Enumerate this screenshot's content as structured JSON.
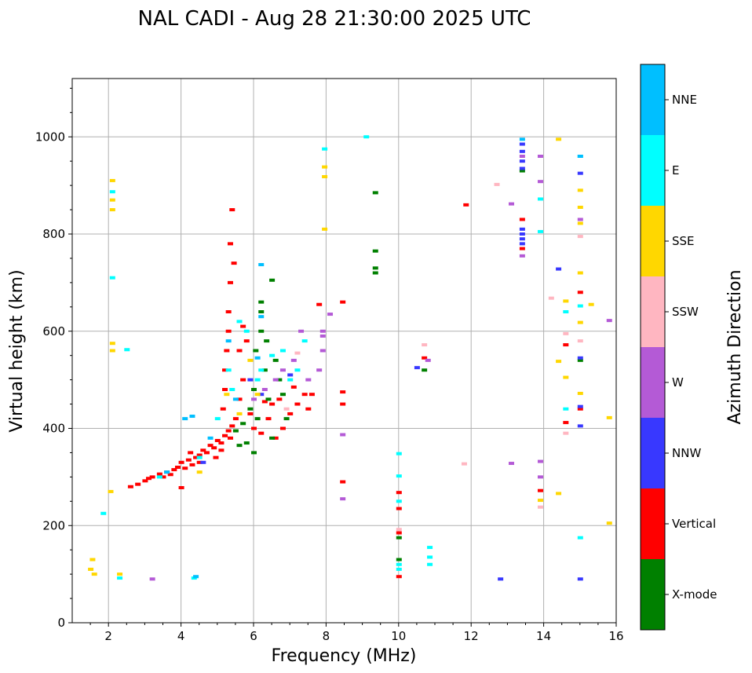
{
  "chart_data": {
    "type": "scatter",
    "title": "NAL CADI - Aug 28 21:30:00 2025 UTC",
    "xlabel": "Frequency (MHz)",
    "ylabel": "Virtual height (km)",
    "xlim": [
      1,
      16
    ],
    "ylim": [
      0,
      1120
    ],
    "x_ticks": [
      2,
      4,
      6,
      8,
      10,
      12,
      14,
      16
    ],
    "x_tick_labels": [
      "2",
      "4",
      "6",
      "8",
      "10",
      "12",
      "14",
      "16"
    ],
    "y_ticks": [
      0,
      200,
      400,
      600,
      800,
      1000
    ],
    "y_tick_labels": [
      "0",
      "200",
      "400",
      "600",
      "800",
      "1000"
    ],
    "grid": true,
    "colorbar": {
      "label": "Azimuth Direction",
      "categories": [
        "X-mode",
        "Vertical",
        "NNW",
        "W",
        "SSW",
        "SSE",
        "E",
        "NNE"
      ],
      "colors": {
        "X-mode": "#008000",
        "Vertical": "#ff0000",
        "NNW": "#3838ff",
        "W": "#b45ad6",
        "SSW": "#ffb6c1",
        "SSE": "#ffd700",
        "E": "#00ffff",
        "NNE": "#00bfff"
      }
    },
    "series": [
      {
        "name": "Vertical",
        "points": [
          [
            2.6,
            280
          ],
          [
            2.8,
            285
          ],
          [
            3.0,
            292
          ],
          [
            3.2,
            300
          ],
          [
            3.4,
            306
          ],
          [
            3.5,
            300
          ],
          [
            3.6,
            310
          ],
          [
            3.7,
            305
          ],
          [
            3.8,
            315
          ],
          [
            3.9,
            320
          ],
          [
            4.0,
            330
          ],
          [
            4.1,
            318
          ],
          [
            4.2,
            335
          ],
          [
            4.3,
            325
          ],
          [
            4.4,
            340
          ],
          [
            4.5,
            345
          ],
          [
            4.5,
            330
          ],
          [
            4.6,
            355
          ],
          [
            4.7,
            350
          ],
          [
            4.8,
            365
          ],
          [
            4.9,
            360
          ],
          [
            5.0,
            375
          ],
          [
            5.1,
            370
          ],
          [
            5.2,
            385
          ],
          [
            5.3,
            395
          ],
          [
            5.4,
            405
          ],
          [
            5.5,
            420
          ],
          [
            4.95,
            340
          ],
          [
            5.1,
            355
          ],
          [
            5.35,
            380
          ],
          [
            5.15,
            440
          ],
          [
            5.2,
            480
          ],
          [
            5.2,
            520
          ],
          [
            5.25,
            560
          ],
          [
            5.3,
            600
          ],
          [
            5.3,
            640
          ],
          [
            5.35,
            700
          ],
          [
            5.35,
            780
          ],
          [
            5.4,
            850
          ],
          [
            5.45,
            740
          ],
          [
            5.6,
            460
          ],
          [
            5.7,
            500
          ],
          [
            5.9,
            430
          ],
          [
            6.0,
            400
          ],
          [
            6.2,
            390
          ],
          [
            6.4,
            420
          ],
          [
            6.5,
            450
          ],
          [
            6.6,
            380
          ],
          [
            6.8,
            400
          ],
          [
            7.0,
            430
          ],
          [
            7.2,
            450
          ],
          [
            7.4,
            470
          ],
          [
            7.6,
            470
          ],
          [
            7.8,
            655
          ],
          [
            5.8,
            580
          ],
          [
            5.7,
            610
          ],
          [
            5.6,
            560
          ],
          [
            4.25,
            350
          ],
          [
            4.0,
            278
          ],
          [
            3.1,
            297
          ],
          [
            6.3,
            455
          ],
          [
            6.7,
            460
          ],
          [
            7.1,
            485
          ],
          [
            7.5,
            440
          ],
          [
            8.45,
            475
          ],
          [
            8.45,
            450
          ],
          [
            8.45,
            290
          ],
          [
            8.45,
            660
          ],
          [
            10.0,
            268
          ],
          [
            10.0,
            235
          ],
          [
            10.0,
            95
          ],
          [
            10.0,
            185
          ],
          [
            10.7,
            545
          ],
          [
            11.85,
            860
          ],
          [
            13.4,
            830
          ],
          [
            13.4,
            770
          ],
          [
            13.9,
            272
          ],
          [
            14.6,
            572
          ],
          [
            15.0,
            440
          ],
          [
            15.0,
            680
          ],
          [
            14.6,
            412
          ]
        ]
      },
      {
        "name": "X-mode",
        "points": [
          [
            5.5,
            395
          ],
          [
            5.7,
            410
          ],
          [
            5.9,
            440
          ],
          [
            6.0,
            480
          ],
          [
            6.05,
            560
          ],
          [
            6.1,
            420
          ],
          [
            6.2,
            600
          ],
          [
            6.2,
            640
          ],
          [
            6.2,
            660
          ],
          [
            6.3,
            520
          ],
          [
            6.35,
            580
          ],
          [
            6.4,
            460
          ],
          [
            6.5,
            380
          ],
          [
            6.5,
            705
          ],
          [
            6.6,
            540
          ],
          [
            6.7,
            500
          ],
          [
            6.8,
            470
          ],
          [
            5.8,
            370
          ],
          [
            5.6,
            365
          ],
          [
            6.0,
            350
          ],
          [
            9.35,
            720
          ],
          [
            9.35,
            730
          ],
          [
            9.35,
            765
          ],
          [
            9.35,
            885
          ],
          [
            10.0,
            130
          ],
          [
            10.0,
            175
          ],
          [
            10.7,
            520
          ],
          [
            13.4,
            930
          ],
          [
            15.0,
            540
          ],
          [
            6.9,
            420
          ]
        ]
      },
      {
        "name": "NNW",
        "points": [
          [
            13.4,
            985
          ],
          [
            13.4,
            970
          ],
          [
            13.4,
            950
          ],
          [
            13.4,
            935
          ],
          [
            13.4,
            800
          ],
          [
            13.4,
            790
          ],
          [
            13.4,
            780
          ],
          [
            13.4,
            810
          ],
          [
            14.4,
            728
          ],
          [
            15.0,
            545
          ],
          [
            15.0,
            445
          ],
          [
            15.0,
            405
          ],
          [
            15.0,
            925
          ],
          [
            15.0,
            90
          ],
          [
            12.8,
            90
          ],
          [
            7.0,
            510
          ],
          [
            6.2,
            470
          ],
          [
            5.9,
            500
          ],
          [
            4.6,
            330
          ],
          [
            10.5,
            525
          ]
        ]
      },
      {
        "name": "W",
        "points": [
          [
            7.9,
            600
          ],
          [
            7.9,
            590
          ],
          [
            7.9,
            560
          ],
          [
            7.8,
            520
          ],
          [
            7.5,
            500
          ],
          [
            7.3,
            600
          ],
          [
            7.1,
            540
          ],
          [
            6.8,
            520
          ],
          [
            6.6,
            500
          ],
          [
            6.3,
            480
          ],
          [
            6.0,
            460
          ],
          [
            8.1,
            635
          ],
          [
            8.45,
            387
          ],
          [
            8.45,
            255
          ],
          [
            3.2,
            90
          ],
          [
            13.1,
            862
          ],
          [
            13.1,
            328
          ],
          [
            13.4,
            755
          ],
          [
            13.4,
            960
          ],
          [
            13.9,
            960
          ],
          [
            13.9,
            908
          ],
          [
            13.9,
            332
          ],
          [
            13.9,
            300
          ],
          [
            15.0,
            830
          ],
          [
            15.8,
            622
          ],
          [
            10.8,
            540
          ]
        ]
      },
      {
        "name": "SSW",
        "points": [
          [
            12.7,
            902
          ],
          [
            14.2,
            668
          ],
          [
            14.6,
            595
          ],
          [
            14.6,
            390
          ],
          [
            15.0,
            580
          ],
          [
            15.0,
            795
          ],
          [
            11.8,
            327
          ],
          [
            10.0,
            192
          ],
          [
            10.7,
            572
          ],
          [
            13.9,
            238
          ],
          [
            7.2,
            555
          ],
          [
            6.9,
            440
          ]
        ]
      },
      {
        "name": "SSE",
        "points": [
          [
            2.1,
            910
          ],
          [
            2.1,
            870
          ],
          [
            2.1,
            850
          ],
          [
            2.1,
            575
          ],
          [
            2.1,
            560
          ],
          [
            2.3,
            100
          ],
          [
            2.05,
            270
          ],
          [
            1.55,
            130
          ],
          [
            1.5,
            110
          ],
          [
            1.6,
            100
          ],
          [
            7.95,
            938
          ],
          [
            7.95,
            918
          ],
          [
            7.95,
            810
          ],
          [
            14.4,
            995
          ],
          [
            14.6,
            662
          ],
          [
            14.6,
            505
          ],
          [
            14.4,
            538
          ],
          [
            14.4,
            266
          ],
          [
            13.9,
            252
          ],
          [
            15.0,
            890
          ],
          [
            15.0,
            855
          ],
          [
            15.0,
            822
          ],
          [
            15.0,
            720
          ],
          [
            15.0,
            618
          ],
          [
            15.0,
            472
          ],
          [
            15.3,
            655
          ],
          [
            15.8,
            422
          ],
          [
            15.8,
            205
          ],
          [
            5.25,
            470
          ],
          [
            5.6,
            430
          ],
          [
            6.1,
            470
          ],
          [
            5.9,
            540
          ],
          [
            4.5,
            310
          ]
        ]
      },
      {
        "name": "E",
        "points": [
          [
            2.1,
            887
          ],
          [
            2.1,
            710
          ],
          [
            2.5,
            562
          ],
          [
            1.85,
            225
          ],
          [
            2.3,
            92
          ],
          [
            3.4,
            300
          ],
          [
            4.35,
            92
          ],
          [
            4.5,
            340
          ],
          [
            5.0,
            420
          ],
          [
            5.3,
            520
          ],
          [
            5.4,
            480
          ],
          [
            5.6,
            620
          ],
          [
            5.8,
            600
          ],
          [
            6.1,
            500
          ],
          [
            6.2,
            520
          ],
          [
            6.5,
            550
          ],
          [
            6.8,
            560
          ],
          [
            7.0,
            500
          ],
          [
            7.2,
            520
          ],
          [
            7.4,
            580
          ],
          [
            10.0,
            348
          ],
          [
            10.0,
            302
          ],
          [
            10.0,
            250
          ],
          [
            10.0,
            120
          ],
          [
            10.0,
            110
          ],
          [
            10.85,
            155
          ],
          [
            10.85,
            135
          ],
          [
            10.85,
            120
          ],
          [
            13.9,
            872
          ],
          [
            13.9,
            805
          ],
          [
            14.6,
            640
          ],
          [
            14.6,
            440
          ],
          [
            15.0,
            175
          ],
          [
            15.0,
            652
          ],
          [
            15.0,
            960
          ],
          [
            7.95,
            975
          ],
          [
            9.1,
            1000
          ]
        ]
      },
      {
        "name": "NNE",
        "points": [
          [
            4.1,
            420
          ],
          [
            4.3,
            425
          ],
          [
            6.2,
            737
          ],
          [
            6.2,
            630
          ],
          [
            6.1,
            545
          ],
          [
            5.5,
            460
          ],
          [
            4.8,
            380
          ],
          [
            3.6,
            310
          ],
          [
            4.4,
            95
          ],
          [
            5.3,
            580
          ],
          [
            13.4,
            995
          ],
          [
            15.0,
            960
          ]
        ]
      }
    ]
  }
}
